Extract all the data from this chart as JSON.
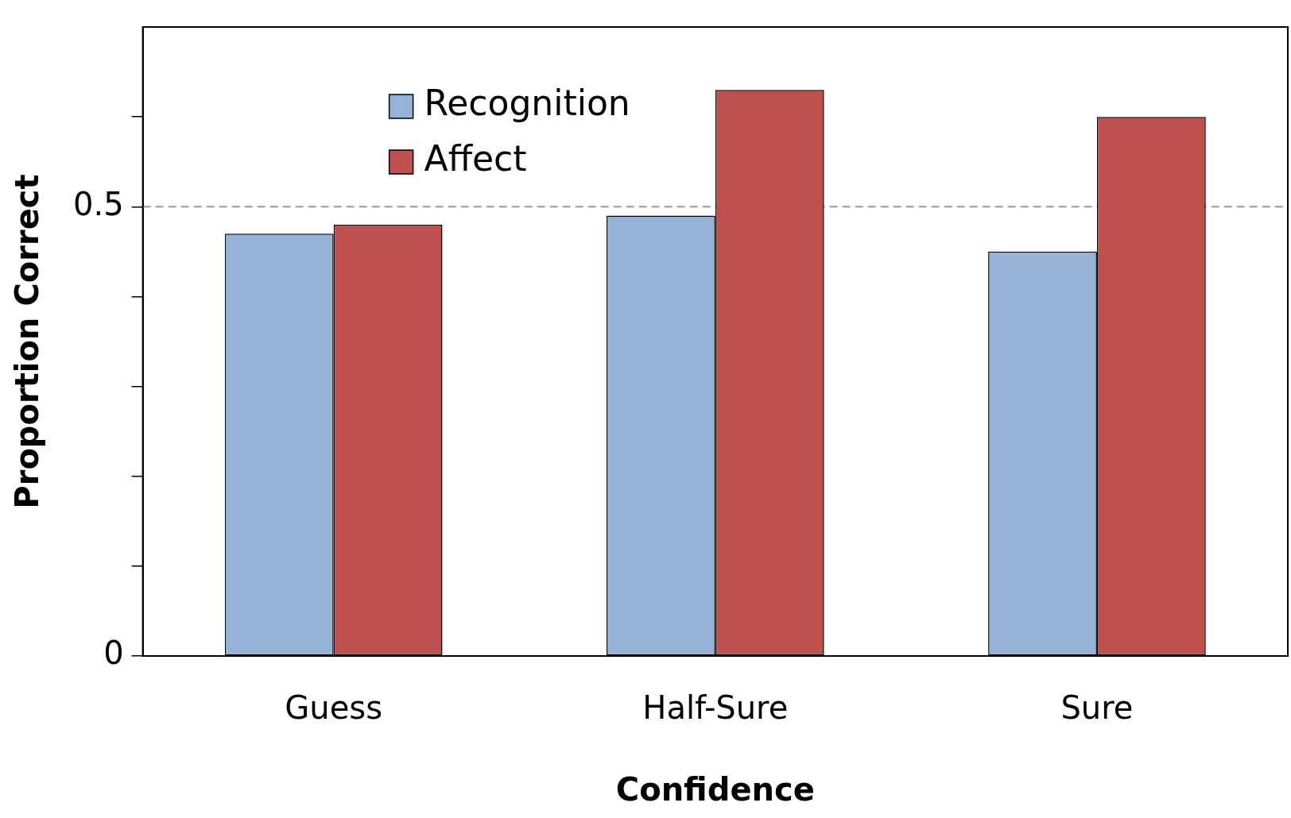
{
  "chart_data": {
    "type": "bar",
    "xlabel": "Confidence",
    "ylabel": "Proportion Correct",
    "categories": [
      "Guess",
      "Half-Sure",
      "Sure"
    ],
    "series": [
      {
        "name": "Recognition",
        "color": "#95b3d7",
        "values": [
          0.47,
          0.49,
          0.45
        ]
      },
      {
        "name": "Affect",
        "color": "#c0504d",
        "values": [
          0.48,
          0.63,
          0.6
        ]
      }
    ],
    "ylim": [
      0,
      0.7
    ],
    "yticks": [
      0,
      {
        "value": 0.1,
        "label": null
      },
      {
        "value": 0.2,
        "label": null
      },
      {
        "value": 0.3,
        "label": null
      },
      {
        "value": 0.4,
        "label": null
      },
      0.5,
      {
        "value": 0.6,
        "label": null
      }
    ],
    "ref_lines": [
      {
        "axis": "y",
        "value": 0.5,
        "color": "#999999",
        "line_style": "dashed"
      }
    ],
    "grid": false,
    "legend": "top left"
  }
}
